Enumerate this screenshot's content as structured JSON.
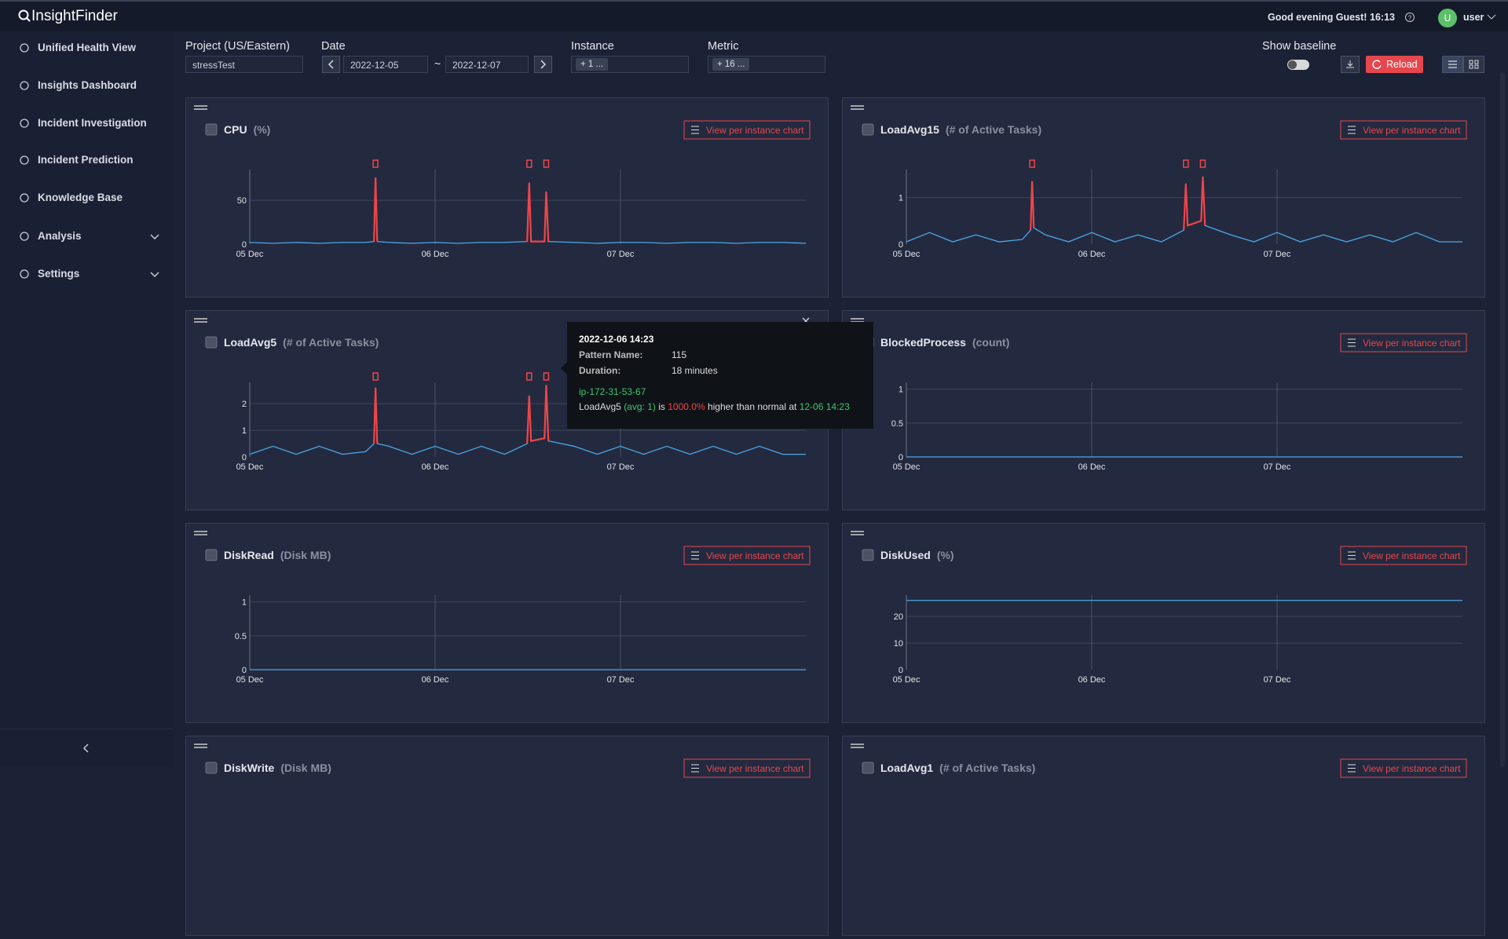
{
  "header": {
    "logo": "InsightFinder",
    "greeting": "Good evening Guest!",
    "time": "16:13",
    "avatar": "U",
    "user": "user"
  },
  "sidebar": {
    "items": [
      "Unified Health View",
      "Insights Dashboard",
      "Incident Investigation",
      "Incident Prediction",
      "Knowledge Base",
      "Analysis",
      "Settings"
    ]
  },
  "toolbar": {
    "project_label": "Project (US/Eastern)",
    "project": "stressTest",
    "date_label": "Date",
    "date_from": "2022-12-05",
    "date_sep": "~",
    "date_to": "2022-12-07",
    "instance_label": "Instance",
    "instance": "+ 1 ...",
    "metric_label": "Metric",
    "metric": "+ 16 ...",
    "baseline_label": "Show baseline",
    "reload": "Reload"
  },
  "charts": [
    {
      "type": "line",
      "title": "CPU",
      "unit": "(%)",
      "button": "View per instance chart",
      "x": [
        "2022-12-05 00:00",
        "2022-12-05 03:00",
        "2022-12-05 06:00",
        "2022-12-05 09:00",
        "2022-12-05 12:00",
        "2022-12-05 15:00",
        "2022-12-05 16:05",
        "2022-12-05 16:17",
        "2022-12-05 16:30",
        "2022-12-05 18:00",
        "2022-12-05 21:00",
        "2022-12-06 00:00",
        "2022-12-06 03:00",
        "2022-12-06 06:00",
        "2022-12-06 09:00",
        "2022-12-06 11:55",
        "2022-12-06 12:11",
        "2022-12-06 12:25",
        "2022-12-06 14:10",
        "2022-12-06 14:23",
        "2022-12-06 14:40",
        "2022-12-06 18:00",
        "2022-12-06 21:00",
        "2022-12-07 00:00",
        "2022-12-07 03:00",
        "2022-12-07 06:00",
        "2022-12-07 09:00",
        "2022-12-07 12:00",
        "2022-12-07 15:00",
        "2022-12-07 18:00",
        "2022-12-07 21:00",
        "2022-12-08 00:00"
      ],
      "series": [
        {
          "color": "#4da6e8",
          "values": [
            2,
            1,
            2,
            1,
            2,
            2,
            3,
            76,
            3,
            2,
            1,
            2,
            1,
            2,
            2,
            3,
            70,
            3,
            3,
            60,
            3,
            2,
            1,
            2,
            2,
            1,
            2,
            2,
            1,
            2,
            2,
            1
          ]
        },
        {
          "color": "#ef4549",
          "values": [
            null,
            null,
            null,
            null,
            null,
            null,
            3,
            76,
            3,
            null,
            null,
            null,
            null,
            null,
            null,
            3,
            70,
            3,
            3,
            60,
            3,
            null,
            null,
            null,
            null,
            null,
            null,
            null,
            null,
            null,
            null,
            null
          ]
        }
      ],
      "xlim": [
        "2022-12-05 00:00",
        "2022-12-08 00:00"
      ],
      "xticks": [
        {
          "value": "2022-12-05 00:00",
          "label": "05 Dec"
        },
        {
          "value": "2022-12-06 00:00",
          "label": "06 Dec"
        },
        {
          "value": "2022-12-07 00:00",
          "label": "07 Dec"
        }
      ],
      "ylim": [
        0,
        85
      ],
      "yticks": [
        0,
        50
      ],
      "grid": true
    },
    {
      "type": "line",
      "title": "LoadAvg15",
      "unit": "(# of Active Tasks)",
      "button": "View per instance chart",
      "x": [
        "2022-12-05 00:00",
        "2022-12-05 03:00",
        "2022-12-05 06:00",
        "2022-12-05 09:00",
        "2022-12-05 12:00",
        "2022-12-05 15:00",
        "2022-12-05 16:05",
        "2022-12-05 16:17",
        "2022-12-05 16:30",
        "2022-12-05 18:00",
        "2022-12-05 21:00",
        "2022-12-06 00:00",
        "2022-12-06 03:00",
        "2022-12-06 06:00",
        "2022-12-06 09:00",
        "2022-12-06 11:55",
        "2022-12-06 12:11",
        "2022-12-06 12:25",
        "2022-12-06 14:10",
        "2022-12-06 14:23",
        "2022-12-06 14:40",
        "2022-12-06 18:00",
        "2022-12-06 21:00",
        "2022-12-07 00:00",
        "2022-12-07 03:00",
        "2022-12-07 06:00",
        "2022-12-07 09:00",
        "2022-12-07 12:00",
        "2022-12-07 15:00",
        "2022-12-07 18:00",
        "2022-12-07 21:00",
        "2022-12-08 00:00"
      ],
      "series": [
        {
          "color": "#4da6e8",
          "values": [
            0.05,
            0.25,
            0.05,
            0.2,
            0.05,
            0.1,
            0.3,
            1.35,
            0.35,
            0.2,
            0.05,
            0.25,
            0.05,
            0.2,
            0.05,
            0.3,
            1.3,
            0.4,
            0.5,
            1.45,
            0.4,
            0.2,
            0.05,
            0.25,
            0.05,
            0.2,
            0.05,
            0.2,
            0.05,
            0.25,
            0.05,
            0.05
          ]
        },
        {
          "color": "#ef4549",
          "values": [
            null,
            null,
            null,
            null,
            null,
            null,
            0.3,
            1.35,
            0.35,
            null,
            null,
            null,
            null,
            null,
            null,
            0.3,
            1.3,
            0.4,
            0.5,
            1.45,
            0.4,
            null,
            null,
            null,
            null,
            null,
            null,
            null,
            null,
            null,
            null,
            null
          ]
        }
      ],
      "xlim": [
        "2022-12-05 00:00",
        "2022-12-08 00:00"
      ],
      "xticks": [
        {
          "value": "2022-12-05 00:00",
          "label": "05 Dec"
        },
        {
          "value": "2022-12-06 00:00",
          "label": "06 Dec"
        },
        {
          "value": "2022-12-07 00:00",
          "label": "07 Dec"
        }
      ],
      "ylim": [
        0,
        1.6
      ],
      "yticks": [
        0,
        1
      ],
      "grid": true
    },
    {
      "type": "line",
      "title": "LoadAvg5",
      "unit": "(# of Active Tasks)",
      "x": [
        "2022-12-05 00:00",
        "2022-12-05 03:00",
        "2022-12-05 06:00",
        "2022-12-05 09:00",
        "2022-12-05 12:00",
        "2022-12-05 15:00",
        "2022-12-05 16:05",
        "2022-12-05 16:17",
        "2022-12-05 16:30",
        "2022-12-05 18:00",
        "2022-12-05 21:00",
        "2022-12-06 00:00",
        "2022-12-06 03:00",
        "2022-12-06 06:00",
        "2022-12-06 09:00",
        "2022-12-06 11:55",
        "2022-12-06 12:11",
        "2022-12-06 12:25",
        "2022-12-06 14:10",
        "2022-12-06 14:23",
        "2022-12-06 14:40",
        "2022-12-06 18:00",
        "2022-12-06 21:00",
        "2022-12-07 00:00",
        "2022-12-07 03:00",
        "2022-12-07 06:00",
        "2022-12-07 09:00",
        "2022-12-07 12:00",
        "2022-12-07 15:00",
        "2022-12-07 18:00",
        "2022-12-07 21:00",
        "2022-12-08 00:00"
      ],
      "series": [
        {
          "color": "#4da6e8",
          "values": [
            0.1,
            0.4,
            0.1,
            0.4,
            0.1,
            0.2,
            0.5,
            2.6,
            0.5,
            0.4,
            0.1,
            0.4,
            0.1,
            0.4,
            0.1,
            0.5,
            2.3,
            0.6,
            0.7,
            2.7,
            0.6,
            0.4,
            0.1,
            0.4,
            0.1,
            0.4,
            0.1,
            0.4,
            0.1,
            0.4,
            0.1,
            0.1
          ]
        },
        {
          "color": "#ef4549",
          "values": [
            null,
            null,
            null,
            null,
            null,
            null,
            0.5,
            2.6,
            0.5,
            null,
            null,
            null,
            null,
            null,
            null,
            0.5,
            2.3,
            0.6,
            0.7,
            2.7,
            0.6,
            null,
            null,
            null,
            null,
            null,
            null,
            null,
            null,
            null,
            null,
            null
          ]
        }
      ],
      "xlim": [
        "2022-12-05 00:00",
        "2022-12-08 00:00"
      ],
      "xticks": [
        {
          "value": "2022-12-05 00:00",
          "label": "05 Dec"
        },
        {
          "value": "2022-12-06 00:00",
          "label": "06 Dec"
        },
        {
          "value": "2022-12-07 00:00",
          "label": "07 Dec"
        }
      ],
      "ylim": [
        0,
        2.8
      ],
      "yticks": [
        0,
        1,
        2
      ],
      "grid": true
    },
    {
      "type": "line",
      "title": "BlockedProcess",
      "unit": "(count)",
      "button": "View per instance chart",
      "x": [
        "2022-12-05 00:00",
        "2022-12-08 00:00"
      ],
      "series": [
        {
          "color": "#4da6e8",
          "values": [
            0,
            0
          ]
        }
      ],
      "xlim": [
        "2022-12-05 00:00",
        "2022-12-08 00:00"
      ],
      "xticks": [
        {
          "value": "2022-12-05 00:00",
          "label": "05 Dec"
        },
        {
          "value": "2022-12-06 00:00",
          "label": "06 Dec"
        },
        {
          "value": "2022-12-07 00:00",
          "label": "07 Dec"
        }
      ],
      "ylim": [
        0,
        1.1
      ],
      "yticks": [
        0,
        0.5,
        1
      ],
      "grid": true
    },
    {
      "type": "line",
      "title": "DiskRead",
      "unit": "(Disk MB)",
      "button": "View per instance chart",
      "x": [
        "2022-12-05 00:00",
        "2022-12-08 00:00"
      ],
      "series": [
        {
          "color": "#4da6e8",
          "values": [
            0,
            0
          ]
        }
      ],
      "xlim": [
        "2022-12-05 00:00",
        "2022-12-08 00:00"
      ],
      "xticks": [
        {
          "value": "2022-12-05 00:00",
          "label": "05 Dec"
        },
        {
          "value": "2022-12-06 00:00",
          "label": "06 Dec"
        },
        {
          "value": "2022-12-07 00:00",
          "label": "07 Dec"
        }
      ],
      "ylim": [
        0,
        1.1
      ],
      "yticks": [
        0,
        0.5,
        1
      ],
      "grid": true
    },
    {
      "type": "line",
      "title": "DiskUsed",
      "unit": "(%)",
      "button": "View per instance chart",
      "x": [
        "2022-12-05 00:00",
        "2022-12-08 00:00"
      ],
      "series": [
        {
          "color": "#4da6e8",
          "values": [
            26,
            26
          ]
        }
      ],
      "xlim": [
        "2022-12-05 00:00",
        "2022-12-08 00:00"
      ],
      "xticks": [
        {
          "value": "2022-12-05 00:00",
          "label": "05 Dec"
        },
        {
          "value": "2022-12-06 00:00",
          "label": "06 Dec"
        },
        {
          "value": "2022-12-07 00:00",
          "label": "07 Dec"
        }
      ],
      "ylim": [
        0,
        28
      ],
      "yticks": [
        0,
        10,
        20
      ],
      "grid": true
    },
    {
      "type": "line",
      "title": "DiskWrite",
      "unit": "(Disk MB)",
      "button": "View per instance chart"
    },
    {
      "type": "line",
      "title": "LoadAvg1",
      "unit": "(# of Active Tasks)",
      "button": "View per instance chart"
    }
  ],
  "tooltip": {
    "time": "2022-12-06 14:23",
    "pattern_label": "Pattern Name:",
    "pattern": "115",
    "duration_label": "Duration:",
    "duration": "18 minutes",
    "instance": "ip-172-31-53-67",
    "metric": "LoadAvg5",
    "avg": "(avg: 1)",
    "is": "is",
    "percent": "1000.0%",
    "text": "higher than normal at",
    "at": "12-06 14:23"
  }
}
